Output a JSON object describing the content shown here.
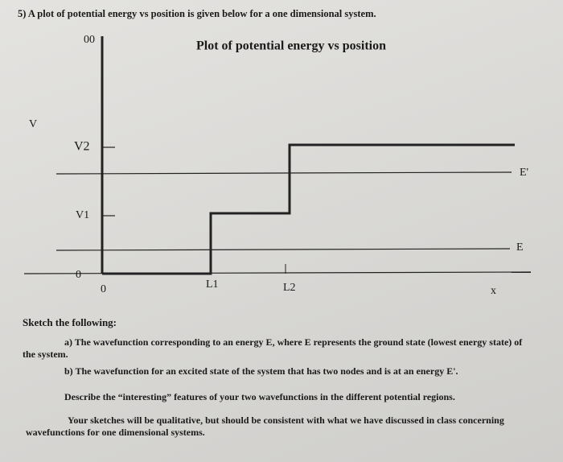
{
  "question": {
    "number_text": "5) A plot of potential energy vs position is given below for a one dimensional system."
  },
  "diagram": {
    "title": "Plot of potential energy vs position",
    "wall_label": "00",
    "y_axis_label": "V",
    "y_labels": [
      "V2",
      "V1",
      "0"
    ],
    "x_labels": [
      "0",
      "L1",
      "L2",
      "x"
    ],
    "energy_labels": [
      "E'",
      "E"
    ]
  },
  "instructions": {
    "intro": "Sketch the following:",
    "items": [
      "a) The wavefunction corresponding to an energy E, where E represents the ground state (lowest energy state) of the system.",
      "b) The wavefunction for an excited state of the system that has two nodes and is at an energy E'."
    ],
    "describe": "Describe the “interesting” features of your two wavefunctions in the different potential regions.",
    "note": "Your sketches will be qualitative, but should be consistent with what we have discussed in class concerning wavefunctions for one dimensional systems."
  }
}
